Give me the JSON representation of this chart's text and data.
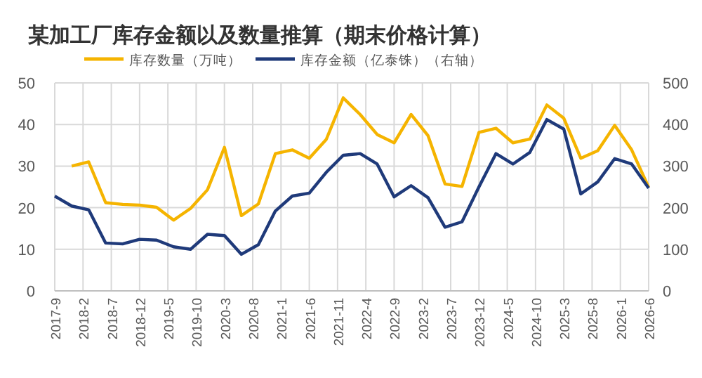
{
  "chart_data": {
    "type": "line",
    "title": "某加工厂库存金额以及数量推算（期末价格计算）",
    "x": [
      "2017-09",
      "2017-12",
      "2018-03",
      "2018-06",
      "2018-09",
      "2018-12",
      "2019-03",
      "2019-06",
      "2019-09",
      "2019-12",
      "2020-03",
      "2020-06",
      "2020-09",
      "2020-12",
      "2021-03",
      "2021-06",
      "2021-09",
      "2021-12",
      "2022-03",
      "2022-06",
      "2022-09",
      "2022-12",
      "2023-03",
      "2023-06",
      "2023-09",
      "2023-12",
      "2024-03",
      "2024-06",
      "2024-09",
      "2024-12",
      "2025-03",
      "2025-06",
      "2025-09",
      "2025-12",
      "2026-03",
      "2026-06"
    ],
    "series": [
      {
        "name": "库存数量（万吨）",
        "color": "#f5b400",
        "values": [
          null,
          30.0,
          31.0,
          21.2,
          20.8,
          20.6,
          20.1,
          17.0,
          19.8,
          24.3,
          34.5,
          18.1,
          20.9,
          33.0,
          33.9,
          31.9,
          36.4,
          46.4,
          42.4,
          37.6,
          35.6,
          42.4,
          37.3,
          25.7,
          25.1,
          38.1,
          39.1,
          35.6,
          36.5,
          44.7,
          41.5,
          31.9,
          33.7,
          39.8,
          33.9,
          24.9
        ]
      },
      {
        "name": "库存金额（亿泰铢）（右轴）",
        "color": "#1f3a7a",
        "axis": "y2",
        "values": [
          228,
          204,
          195,
          115,
          113,
          124,
          122,
          106,
          100,
          136,
          133,
          88,
          111,
          192,
          228,
          235,
          285,
          326,
          330,
          305,
          226,
          253,
          224,
          153,
          166,
          250,
          330,
          305,
          333,
          412,
          389,
          233,
          262,
          318,
          305,
          247
        ]
      }
    ],
    "xlim": [
      "2017-09",
      "2026-06"
    ],
    "xticks": [
      {
        "value": "2017-09",
        "label": "2017-9"
      },
      {
        "value": "2018-02",
        "label": "2018-2"
      },
      {
        "value": "2018-07",
        "label": "2018-7"
      },
      {
        "value": "2018-12",
        "label": "2018-12"
      },
      {
        "value": "2019-05",
        "label": "2019-5"
      },
      {
        "value": "2019-10",
        "label": "2019-10"
      },
      {
        "value": "2020-03",
        "label": "2020-3"
      },
      {
        "value": "2020-08",
        "label": "2020-8"
      },
      {
        "value": "2021-01",
        "label": "2021-1"
      },
      {
        "value": "2021-06",
        "label": "2021-6"
      },
      {
        "value": "2021-11",
        "label": "2021-11"
      },
      {
        "value": "2022-04",
        "label": "2022-4"
      },
      {
        "value": "2022-09",
        "label": "2022-9"
      },
      {
        "value": "2023-02",
        "label": "2023-2"
      },
      {
        "value": "2023-07",
        "label": "2023-7"
      },
      {
        "value": "2023-12",
        "label": "2023-12"
      },
      {
        "value": "2024-05",
        "label": "2024-5"
      },
      {
        "value": "2024-10",
        "label": "2024-10"
      },
      {
        "value": "2025-03",
        "label": "2025-3"
      },
      {
        "value": "2025-08",
        "label": "2025-8"
      },
      {
        "value": "2026-01",
        "label": "2026-1"
      },
      {
        "value": "2026-06",
        "label": "2026-6"
      }
    ],
    "ylim": [
      0,
      50
    ],
    "yticks": [
      0,
      10,
      20,
      30,
      40,
      50
    ],
    "y2lim": [
      0,
      500
    ],
    "y2ticks": [
      0,
      100,
      200,
      300,
      400,
      500
    ],
    "grid": true,
    "legend": "top",
    "marker": "none",
    "line_style": "solid"
  }
}
